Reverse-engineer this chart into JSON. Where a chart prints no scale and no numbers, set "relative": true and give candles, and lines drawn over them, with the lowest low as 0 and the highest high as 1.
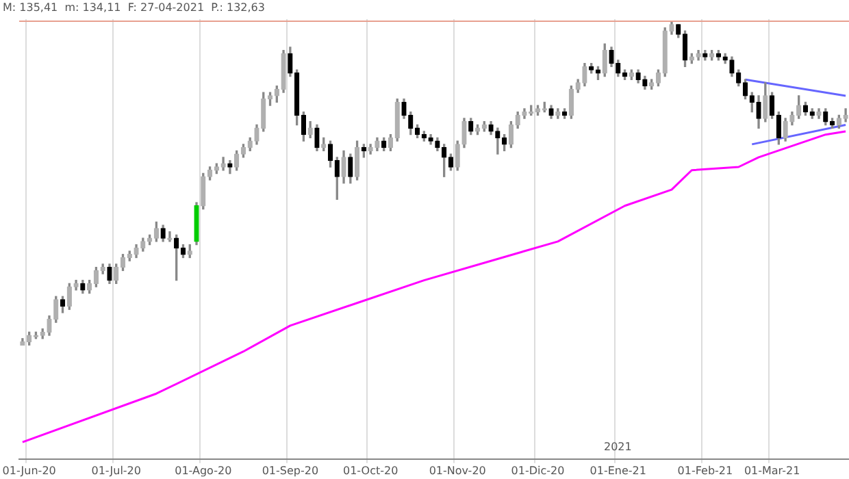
{
  "chart_data": {
    "type": "candlestick",
    "relative": true,
    "tick_labels": "x",
    "grid": "x",
    "categories": [
      null,
      "01-Jun-20",
      null,
      null,
      null,
      null,
      null,
      null,
      null,
      null,
      null,
      null,
      null,
      null,
      "01-Jul-20",
      null,
      null,
      null,
      null,
      null,
      null,
      null,
      null,
      null,
      null,
      null,
      null,
      "01-Ago-20",
      null,
      null,
      null,
      null,
      null,
      null,
      null,
      null,
      null,
      null,
      null,
      null,
      "01-Sep-20",
      null,
      null,
      null,
      null,
      null,
      null,
      null,
      null,
      null,
      null,
      null,
      "01-Oct-20",
      null,
      null,
      null,
      null,
      null,
      null,
      null,
      null,
      null,
      null,
      null,
      null,
      "01-Nov-20",
      null,
      null,
      null,
      null,
      null,
      null,
      null,
      null,
      null,
      null,
      null,
      "01-Dic-20",
      null,
      null,
      null,
      null,
      null,
      null,
      null,
      null,
      null,
      null,
      null,
      "01-Ene-21",
      null,
      null,
      null,
      null,
      null,
      null,
      null,
      null,
      null,
      null,
      null,
      null,
      "01-Feb-21",
      null,
      null,
      null,
      null,
      null,
      null,
      null,
      null,
      null,
      "01-Mar-21",
      null,
      null,
      null,
      null,
      null,
      null,
      null,
      null,
      null,
      null,
      null
    ],
    "ohlc": [
      [
        0.0,
        0.02,
        0,
        0.01
      ],
      [
        0.01,
        0.04,
        0.0,
        0.03
      ],
      [
        0.03,
        0.04,
        0.02,
        0.03
      ],
      [
        0.03,
        0.05,
        0.02,
        0.04
      ],
      [
        0.04,
        0.09,
        0.03,
        0.08
      ],
      [
        0.08,
        0.15,
        0.07,
        0.14
      ],
      [
        0.14,
        0.15,
        0.1,
        0.12
      ],
      [
        0.12,
        0.19,
        0.11,
        0.18
      ],
      [
        0.18,
        0.2,
        0.17,
        0.19
      ],
      [
        0.19,
        0.2,
        0.16,
        0.17
      ],
      [
        0.17,
        0.2,
        0.16,
        0.19
      ],
      [
        0.19,
        0.24,
        0.18,
        0.23
      ],
      [
        0.23,
        0.25,
        0.22,
        0.24
      ],
      [
        0.24,
        0.25,
        0.19,
        0.2
      ],
      [
        0.2,
        0.25,
        0.19,
        0.24
      ],
      [
        0.24,
        0.28,
        0.23,
        0.27
      ],
      [
        0.27,
        0.29,
        0.26,
        0.28
      ],
      [
        0.28,
        0.31,
        0.27,
        0.3
      ],
      [
        0.3,
        0.33,
        0.29,
        0.32
      ],
      [
        0.32,
        0.34,
        0.31,
        0.33
      ],
      [
        0.33,
        0.38,
        0.32,
        0.36
      ],
      [
        0.36,
        0.37,
        0.32,
        0.33
      ],
      [
        0.33,
        0.35,
        0.32,
        0.33
      ],
      [
        0.33,
        0.34,
        0.2,
        0.3
      ],
      [
        0.3,
        0.31,
        0.27,
        0.28
      ],
      [
        0.28,
        0.31,
        0.27,
        0.29
      ],
      [
        0.32,
        0.44,
        0.31,
        0.43
      ],
      [
        0.43,
        0.53,
        0.42,
        0.52
      ],
      [
        0.52,
        0.55,
        0.51,
        0.54
      ],
      [
        0.54,
        0.56,
        0.53,
        0.55
      ],
      [
        0.55,
        0.58,
        0.54,
        0.56
      ],
      [
        0.56,
        0.57,
        0.53,
        0.55
      ],
      [
        0.55,
        0.6,
        0.54,
        0.59
      ],
      [
        0.59,
        0.62,
        0.58,
        0.61
      ],
      [
        0.61,
        0.64,
        0.6,
        0.63
      ],
      [
        0.63,
        0.68,
        0.62,
        0.67
      ],
      [
        0.67,
        0.78,
        0.66,
        0.76
      ],
      [
        0.76,
        0.78,
        0.74,
        0.77
      ],
      [
        0.77,
        0.8,
        0.75,
        0.79
      ],
      [
        0.79,
        0.91,
        0.78,
        0.9
      ],
      [
        0.9,
        0.92,
        0.83,
        0.84
      ],
      [
        0.84,
        0.85,
        0.68,
        0.71
      ],
      [
        0.71,
        0.72,
        0.63,
        0.65
      ],
      [
        0.65,
        0.69,
        0.64,
        0.67
      ],
      [
        0.67,
        0.68,
        0.6,
        0.61
      ],
      [
        0.61,
        0.64,
        0.6,
        0.62
      ],
      [
        0.62,
        0.63,
        0.55,
        0.57
      ],
      [
        0.57,
        0.58,
        0.45,
        0.52
      ],
      [
        0.52,
        0.6,
        0.5,
        0.58
      ],
      [
        0.58,
        0.59,
        0.5,
        0.52
      ],
      [
        0.52,
        0.63,
        0.51,
        0.61
      ],
      [
        0.61,
        0.62,
        0.58,
        0.6
      ],
      [
        0.6,
        0.62,
        0.59,
        0.61
      ],
      [
        0.61,
        0.64,
        0.6,
        0.63
      ],
      [
        0.63,
        0.64,
        0.6,
        0.61
      ],
      [
        0.61,
        0.65,
        0.6,
        0.64
      ],
      [
        0.64,
        0.76,
        0.63,
        0.75
      ],
      [
        0.75,
        0.76,
        0.7,
        0.71
      ],
      [
        0.71,
        0.72,
        0.65,
        0.67
      ],
      [
        0.67,
        0.68,
        0.64,
        0.65
      ],
      [
        0.65,
        0.66,
        0.63,
        0.64
      ],
      [
        0.64,
        0.65,
        0.62,
        0.63
      ],
      [
        0.63,
        0.64,
        0.6,
        0.61
      ],
      [
        0.61,
        0.62,
        0.52,
        0.58
      ],
      [
        0.58,
        0.59,
        0.54,
        0.55
      ],
      [
        0.55,
        0.63,
        0.54,
        0.62
      ],
      [
        0.62,
        0.7,
        0.61,
        0.69
      ],
      [
        0.69,
        0.7,
        0.65,
        0.66
      ],
      [
        0.66,
        0.68,
        0.65,
        0.67
      ],
      [
        0.67,
        0.69,
        0.66,
        0.68
      ],
      [
        0.68,
        0.69,
        0.65,
        0.66
      ],
      [
        0.66,
        0.67,
        0.59,
        0.64
      ],
      [
        0.64,
        0.65,
        0.6,
        0.62
      ],
      [
        0.62,
        0.69,
        0.61,
        0.68
      ],
      [
        0.68,
        0.72,
        0.67,
        0.71
      ],
      [
        0.71,
        0.73,
        0.7,
        0.72
      ],
      [
        0.72,
        0.74,
        0.71,
        0.72
      ],
      [
        0.72,
        0.74,
        0.71,
        0.73
      ],
      [
        0.73,
        0.75,
        0.72,
        0.73
      ],
      [
        0.73,
        0.74,
        0.7,
        0.71
      ],
      [
        0.71,
        0.73,
        0.7,
        0.72
      ],
      [
        0.72,
        0.73,
        0.7,
        0.71
      ],
      [
        0.71,
        0.8,
        0.7,
        0.79
      ],
      [
        0.79,
        0.82,
        0.78,
        0.81
      ],
      [
        0.81,
        0.87,
        0.8,
        0.86
      ],
      [
        0.86,
        0.87,
        0.84,
        0.85
      ],
      [
        0.85,
        0.86,
        0.82,
        0.84
      ],
      [
        0.84,
        0.93,
        0.83,
        0.91
      ],
      [
        0.91,
        0.92,
        0.86,
        0.87
      ],
      [
        0.87,
        0.88,
        0.83,
        0.84
      ],
      [
        0.84,
        0.85,
        0.82,
        0.83
      ],
      [
        0.83,
        0.85,
        0.82,
        0.84
      ],
      [
        0.84,
        0.85,
        0.81,
        0.82
      ],
      [
        0.82,
        0.83,
        0.79,
        0.8
      ],
      [
        0.8,
        0.82,
        0.79,
        0.81
      ],
      [
        0.81,
        0.85,
        0.8,
        0.84
      ],
      [
        0.84,
        0.98,
        0.83,
        0.97
      ],
      [
        0.97,
        1,
        0.96,
        0.99
      ],
      [
        0.99,
        0.99,
        0.95,
        0.96
      ],
      [
        0.96,
        0.97,
        0.86,
        0.88
      ],
      [
        0.88,
        0.9,
        0.87,
        0.89
      ],
      [
        0.89,
        0.91,
        0.88,
        0.9
      ],
      [
        0.9,
        0.91,
        0.88,
        0.89
      ],
      [
        0.89,
        0.91,
        0.88,
        0.9
      ],
      [
        0.9,
        0.91,
        0.88,
        0.89
      ],
      [
        0.89,
        0.9,
        0.87,
        0.88
      ],
      [
        0.88,
        0.89,
        0.83,
        0.84
      ],
      [
        0.84,
        0.85,
        0.8,
        0.81
      ],
      [
        0.81,
        0.82,
        0.76,
        0.77
      ],
      [
        0.77,
        0.78,
        0.72,
        0.75
      ],
      [
        0.75,
        0.77,
        0.67,
        0.7
      ],
      [
        0.7,
        0.81,
        0.69,
        0.77
      ],
      [
        0.77,
        0.78,
        0.7,
        0.71
      ],
      [
        0.71,
        0.72,
        0.62,
        0.64
      ],
      [
        0.64,
        0.7,
        0.63,
        0.69
      ],
      [
        0.69,
        0.72,
        0.68,
        0.71
      ],
      [
        0.71,
        0.77,
        0.7,
        0.74
      ],
      [
        0.74,
        0.75,
        0.71,
        0.72
      ],
      [
        0.72,
        0.73,
        0.7,
        0.71
      ],
      [
        0.71,
        0.73,
        0.7,
        0.72
      ],
      [
        0.72,
        0.73,
        0.68,
        0.69
      ],
      [
        0.69,
        0.7,
        0.67,
        0.68
      ],
      [
        0.68,
        0.71,
        0.67,
        0.7
      ],
      [
        0.7,
        0.73,
        0.69,
        0.71
      ]
    ],
    "colors": [
      "#b0b0b0",
      "#b0b0b0",
      "#b0b0b0",
      "#b0b0b0",
      "#b0b0b0",
      "#b0b0b0",
      "#000000",
      "#b0b0b0",
      "#b0b0b0",
      "#000000",
      "#b0b0b0",
      "#b0b0b0",
      "#b0b0b0",
      "#000000",
      "#b0b0b0",
      "#b0b0b0",
      "#b0b0b0",
      "#b0b0b0",
      "#b0b0b0",
      "#b0b0b0",
      "#b0b0b0",
      "#000000",
      "#b0b0b0",
      "#000000",
      "#000000",
      "#b0b0b0",
      "#00cc00",
      "#b0b0b0",
      "#b0b0b0",
      "#b0b0b0",
      "#b0b0b0",
      "#000000",
      "#b0b0b0",
      "#b0b0b0",
      "#b0b0b0",
      "#b0b0b0",
      "#b0b0b0",
      "#b0b0b0",
      "#b0b0b0",
      "#b0b0b0",
      "#000000",
      "#000000",
      "#000000",
      "#b0b0b0",
      "#000000",
      "#b0b0b0",
      "#000000",
      "#000000",
      "#b0b0b0",
      "#000000",
      "#b0b0b0",
      "#000000",
      "#b0b0b0",
      "#b0b0b0",
      "#000000",
      "#b0b0b0",
      "#b0b0b0",
      "#000000",
      "#000000",
      "#000000",
      "#000000",
      "#000000",
      "#000000",
      "#000000",
      "#000000",
      "#b0b0b0",
      "#b0b0b0",
      "#000000",
      "#b0b0b0",
      "#b0b0b0",
      "#000000",
      "#000000",
      "#000000",
      "#b0b0b0",
      "#b0b0b0",
      "#b0b0b0",
      "#b0b0b0",
      "#b0b0b0",
      "#b0b0b0",
      "#000000",
      "#b0b0b0",
      "#000000",
      "#b0b0b0",
      "#b0b0b0",
      "#b0b0b0",
      "#000000",
      "#000000",
      "#b0b0b0",
      "#000000",
      "#000000",
      "#000000",
      "#b0b0b0",
      "#000000",
      "#000000",
      "#b0b0b0",
      "#b0b0b0",
      "#b0b0b0",
      "#b0b0b0",
      "#000000",
      "#000000",
      "#b0b0b0",
      "#b0b0b0",
      "#000000",
      "#b0b0b0",
      "#000000",
      "#000000",
      "#000000",
      "#000000",
      "#000000",
      "#000000",
      "#000000",
      "#b0b0b0",
      "#000000",
      "#000000",
      "#b0b0b0",
      "#b0b0b0",
      "#b0b0b0",
      "#000000",
      "#000000",
      "#b0b0b0",
      "#000000",
      "#000000",
      "#b0b0b0",
      "#b0b0b0"
    ],
    "series": [
      {
        "type": "line",
        "color": "#ff00ff",
        "values": [
          -0.3,
          null,
          null,
          null,
          null,
          null,
          null,
          null,
          null,
          null,
          null,
          null,
          null,
          null,
          null,
          null,
          null,
          null,
          null,
          null,
          -0.15,
          null,
          null,
          null,
          null,
          null,
          null,
          null,
          null,
          null,
          null,
          null,
          null,
          -0.02,
          null,
          null,
          null,
          null,
          null,
          null,
          0.06,
          null,
          null,
          null,
          null,
          null,
          null,
          null,
          null,
          null,
          0.13,
          null,
          null,
          null,
          null,
          null,
          null,
          null,
          null,
          null,
          0.2,
          null,
          null,
          null,
          null,
          null,
          null,
          null,
          null,
          null,
          0.26,
          null,
          null,
          null,
          null,
          null,
          null,
          null,
          null,
          null,
          0.32,
          null,
          null,
          null,
          null,
          null,
          null,
          null,
          null,
          null,
          0.43,
          null,
          null,
          null,
          null,
          null,
          null,
          0.48,
          null,
          null,
          0.54,
          null,
          null,
          null,
          null,
          null,
          null,
          0.55,
          null,
          null,
          0.58,
          null,
          null,
          null,
          null,
          null,
          null,
          null,
          null,
          null,
          0.65,
          null,
          null,
          0.66
        ]
      },
      {
        "type": "line",
        "color": "#6666ff",
        "values": [
          null,
          null,
          null,
          null,
          null,
          null,
          null,
          null,
          null,
          null,
          null,
          null,
          null,
          null,
          null,
          null,
          null,
          null,
          null,
          null,
          null,
          null,
          null,
          null,
          null,
          null,
          null,
          null,
          null,
          null,
          null,
          null,
          null,
          null,
          null,
          null,
          null,
          null,
          null,
          null,
          null,
          null,
          null,
          null,
          null,
          null,
          null,
          null,
          null,
          null,
          null,
          null,
          null,
          null,
          null,
          null,
          null,
          null,
          null,
          null,
          null,
          null,
          null,
          null,
          null,
          null,
          null,
          null,
          null,
          null,
          null,
          null,
          null,
          null,
          null,
          null,
          null,
          null,
          null,
          null,
          null,
          null,
          null,
          null,
          null,
          null,
          null,
          null,
          null,
          null,
          null,
          null,
          null,
          null,
          null,
          null,
          null,
          null,
          null,
          null,
          null,
          null,
          null,
          null,
          null,
          null,
          null,
          null,
          0.82,
          null,
          null,
          null,
          null,
          null,
          null,
          null,
          null,
          null,
          null,
          null,
          null,
          null,
          null,
          0.77
        ]
      },
      {
        "type": "line",
        "color": "#6666ff",
        "values": [
          null,
          null,
          null,
          null,
          null,
          null,
          null,
          null,
          null,
          null,
          null,
          null,
          null,
          null,
          null,
          null,
          null,
          null,
          null,
          null,
          null,
          null,
          null,
          null,
          null,
          null,
          null,
          null,
          null,
          null,
          null,
          null,
          null,
          null,
          null,
          null,
          null,
          null,
          null,
          null,
          null,
          null,
          null,
          null,
          null,
          null,
          null,
          null,
          null,
          null,
          null,
          null,
          null,
          null,
          null,
          null,
          null,
          null,
          null,
          null,
          null,
          null,
          null,
          null,
          null,
          null,
          null,
          null,
          null,
          null,
          null,
          null,
          null,
          null,
          null,
          null,
          null,
          null,
          null,
          null,
          null,
          null,
          null,
          null,
          null,
          null,
          null,
          null,
          null,
          null,
          null,
          null,
          null,
          null,
          null,
          null,
          null,
          null,
          null,
          null,
          null,
          null,
          null,
          null,
          null,
          null,
          null,
          null,
          null,
          0.62,
          null,
          null,
          null,
          null,
          null,
          null,
          null,
          null,
          null,
          null,
          null,
          null,
          null,
          0.68
        ]
      }
    ],
    "ref_lines": [
      {
        "axis": "y",
        "value": 1,
        "color": "#e8a090"
      }
    ],
    "annotations": [
      "M: 135,41  m: 134,11  F: 27-04-2021  P.: 132,63",
      "2021"
    ]
  }
}
